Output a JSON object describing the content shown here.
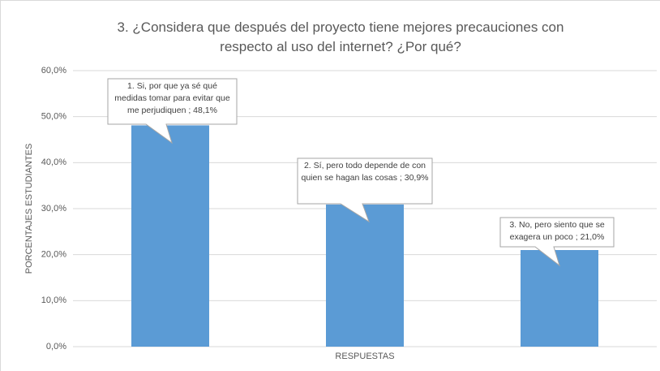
{
  "chart_data": {
    "type": "bar",
    "title": "3. ¿Considera que después del proyecto tiene mejores precauciones con respecto al uso del internet? ¿Por qué?",
    "y_label": "PORCENTAJES ESTUDIANTES",
    "x_label": "RESPUESTAS",
    "categories": [
      null,
      null,
      null
    ],
    "values": [
      48.1,
      30.9,
      21.0
    ],
    "value_labels": [
      "1.    Si, por que ya sé qué medidas tomar para evitar que me perjudiquen ; 48,1%",
      "2.    Sí, pero todo depende de con quien se hagan las cosas ; 30,9%",
      "3.    No, pero siento que se exagera un poco ; 21,0%"
    ],
    "color": "#5b9bd5",
    "ylim": [
      0,
      60
    ],
    "yticks": [
      {
        "value": 0,
        "label": "0,0%"
      },
      {
        "value": 10,
        "label": "10,0%"
      },
      {
        "value": 20,
        "label": "20,0%"
      },
      {
        "value": 30,
        "label": "30,0%"
      },
      {
        "value": 40,
        "label": "40,0%"
      },
      {
        "value": 50,
        "label": "50,0%"
      },
      {
        "value": 60,
        "label": "60,0%"
      }
    ],
    "grid": true
  }
}
